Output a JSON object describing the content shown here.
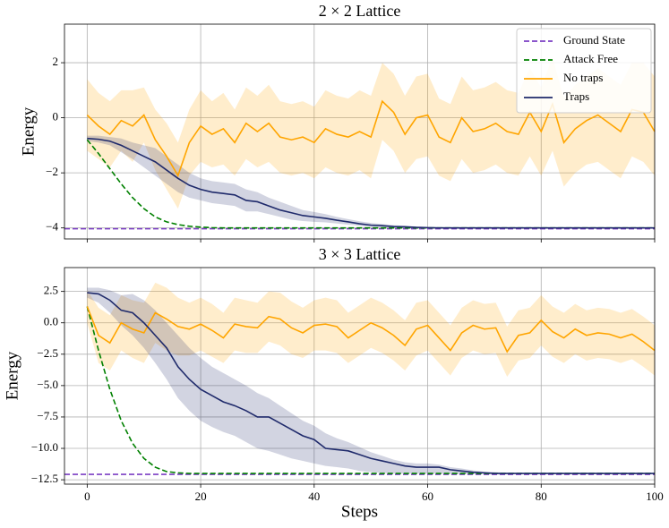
{
  "chart_data": [
    {
      "type": "line",
      "title": "2 × 2 Lattice",
      "ylabel": "Energy",
      "xlim": [
        -4,
        100
      ],
      "ylim": [
        -4.4,
        3.4
      ],
      "xticks": [
        0,
        20,
        40,
        60,
        80,
        100
      ],
      "show_xtick_labels": false,
      "yticks": [
        {
          "value": -4,
          "label": "−4"
        },
        {
          "value": -2,
          "label": "−2"
        },
        0,
        2
      ],
      "grid": true,
      "legend": "upper right",
      "x": [
        0,
        2,
        4,
        6,
        8,
        10,
        12,
        14,
        16,
        18,
        20,
        22,
        24,
        26,
        28,
        30,
        32,
        34,
        36,
        38,
        40,
        42,
        44,
        46,
        48,
        50,
        52,
        54,
        56,
        58,
        60,
        62,
        64,
        66,
        68,
        70,
        72,
        74,
        76,
        78,
        80,
        82,
        84,
        86,
        88,
        90,
        92,
        94,
        96,
        98,
        100
      ],
      "series": [
        {
          "name": "Ground State",
          "color": "#7b3fc4",
          "dashed": true,
          "hline": -4.03
        },
        {
          "name": "Attack Free",
          "color": "#008000",
          "dashed": true,
          "values": [
            -0.8,
            -1.3,
            -1.85,
            -2.4,
            -2.9,
            -3.3,
            -3.6,
            -3.78,
            -3.88,
            -3.94,
            -3.97,
            -3.99,
            -4.0,
            -4.0,
            -4.0,
            -4.0,
            -4.0,
            -4.0,
            -4.0,
            -4.0,
            -4.0,
            -4.0,
            -4.0,
            -4.0,
            -4.0,
            -4.0,
            -4.0,
            -4.0,
            -4.0,
            -4.0,
            -4.0,
            -4.0,
            -4.0,
            -4.0,
            -4.0,
            -4.0,
            -4.0,
            -4.0,
            -4.0,
            -4.0,
            -4.0,
            -4.0,
            -4.0,
            -4.0,
            -4.0,
            -4.0,
            -4.0,
            -4.0,
            -4.0,
            -4.0,
            -4.0
          ]
        },
        {
          "name": "No traps",
          "color": "#ffa500",
          "values": [
            0.1,
            -0.3,
            -0.6,
            -0.1,
            -0.3,
            0.1,
            -0.8,
            -1.4,
            -2.1,
            -0.9,
            -0.3,
            -0.6,
            -0.4,
            -0.9,
            -0.2,
            -0.5,
            -0.2,
            -0.7,
            -0.8,
            -0.7,
            -0.9,
            -0.4,
            -0.6,
            -0.7,
            -0.5,
            -0.7,
            0.6,
            0.2,
            -0.6,
            0.0,
            0.1,
            -0.7,
            -0.9,
            0.0,
            -0.5,
            -0.4,
            -0.2,
            -0.5,
            -0.6,
            0.2,
            -0.5,
            0.5,
            -0.9,
            -0.4,
            -0.1,
            0.1,
            -0.2,
            -0.5,
            0.3,
            0.2,
            -0.5
          ],
          "upper": [
            1.4,
            0.9,
            0.6,
            1.0,
            1.0,
            1.1,
            0.3,
            -0.2,
            -0.9,
            0.3,
            1.0,
            0.6,
            0.9,
            0.3,
            1.1,
            0.8,
            1.2,
            0.6,
            0.5,
            0.6,
            0.4,
            1.0,
            0.8,
            0.7,
            1.0,
            0.8,
            2.0,
            1.6,
            0.8,
            1.5,
            1.6,
            0.7,
            0.5,
            1.5,
            1.0,
            1.1,
            1.3,
            1.0,
            0.9,
            1.8,
            1.1,
            2.2,
            0.7,
            1.2,
            1.5,
            1.8,
            1.5,
            1.2,
            2.0,
            2.0,
            1.5
          ],
          "lower": [
            -1.2,
            -1.5,
            -1.8,
            -1.2,
            -1.6,
            -0.9,
            -1.9,
            -2.6,
            -3.3,
            -2.1,
            -1.6,
            -1.8,
            -1.7,
            -2.1,
            -1.5,
            -1.8,
            -1.6,
            -2.0,
            -2.1,
            -2.0,
            -2.2,
            -1.8,
            -2.0,
            -2.1,
            -1.9,
            -2.2,
            -0.8,
            -1.2,
            -2.0,
            -1.5,
            -1.4,
            -2.1,
            -2.3,
            -1.5,
            -2.0,
            -1.9,
            -1.7,
            -2.0,
            -2.1,
            -1.4,
            -2.1,
            -1.2,
            -2.5,
            -2.0,
            -1.7,
            -1.6,
            -1.9,
            -2.2,
            -1.4,
            -1.6,
            -2.1
          ]
        },
        {
          "name": "Traps",
          "color": "#1f2a6b",
          "values": [
            -0.75,
            -0.78,
            -0.85,
            -1.0,
            -1.2,
            -1.4,
            -1.6,
            -1.9,
            -2.2,
            -2.45,
            -2.6,
            -2.7,
            -2.75,
            -2.8,
            -3.0,
            -3.05,
            -3.2,
            -3.35,
            -3.45,
            -3.55,
            -3.6,
            -3.65,
            -3.72,
            -3.78,
            -3.85,
            -3.9,
            -3.92,
            -3.95,
            -3.96,
            -3.98,
            -3.99,
            -4.0,
            -4.0,
            -4.0,
            -4.0,
            -4.0,
            -4.0,
            -4.0,
            -4.0,
            -4.0,
            -4.0,
            -4.0,
            -4.0,
            -4.0,
            -4.0,
            -4.0,
            -4.0,
            -4.0,
            -4.0,
            -4.0,
            -4.0
          ],
          "upper": [
            -0.65,
            -0.65,
            -0.7,
            -0.75,
            -0.9,
            -1.0,
            -1.1,
            -1.4,
            -1.7,
            -2.0,
            -2.2,
            -2.3,
            -2.35,
            -2.4,
            -2.6,
            -2.7,
            -2.9,
            -3.05,
            -3.2,
            -3.35,
            -3.42,
            -3.5,
            -3.6,
            -3.68,
            -3.76,
            -3.82,
            -3.86,
            -3.9,
            -3.92,
            -3.95,
            -3.96,
            -3.97,
            -3.97,
            -3.97,
            -3.97,
            -3.97,
            -3.97,
            -3.97,
            -3.97,
            -3.97,
            -3.97,
            -3.97,
            -3.97,
            -3.97,
            -3.97,
            -3.97,
            -3.97,
            -3.97,
            -3.97,
            -3.97,
            -3.97
          ],
          "lower": [
            -0.85,
            -0.9,
            -1.0,
            -1.25,
            -1.5,
            -1.8,
            -2.1,
            -2.4,
            -2.7,
            -2.9,
            -3.0,
            -3.1,
            -3.15,
            -3.2,
            -3.4,
            -3.4,
            -3.5,
            -3.6,
            -3.7,
            -3.75,
            -3.78,
            -3.8,
            -3.84,
            -3.88,
            -3.92,
            -3.96,
            -3.97,
            -3.99,
            -4.0,
            -4.01,
            -4.02,
            -4.03,
            -4.03,
            -4.03,
            -4.03,
            -4.03,
            -4.03,
            -4.03,
            -4.03,
            -4.03,
            -4.03,
            -4.03,
            -4.03,
            -4.03,
            -4.03,
            -4.03,
            -4.03,
            -4.03,
            -4.03,
            -4.03,
            -4.03
          ]
        }
      ]
    },
    {
      "type": "line",
      "title": "3 × 3 Lattice",
      "xlabel": "Steps",
      "ylabel": "Energy",
      "xlim": [
        -4,
        100
      ],
      "ylim": [
        -12.85,
        4.4
      ],
      "xticks": [
        0,
        20,
        40,
        60,
        80,
        100
      ],
      "show_xtick_labels": true,
      "yticks": [
        {
          "value": -12.5,
          "label": "−12.5"
        },
        {
          "value": -10,
          "label": "−10.0"
        },
        {
          "value": -7.5,
          "label": "−7.5"
        },
        {
          "value": -5,
          "label": "−5.0"
        },
        {
          "value": -2.5,
          "label": "−2.5"
        },
        {
          "value": 0,
          "label": "0.0"
        },
        2.5
      ],
      "grid": true,
      "x": [
        0,
        2,
        4,
        6,
        8,
        10,
        12,
        14,
        16,
        18,
        20,
        22,
        24,
        26,
        28,
        30,
        32,
        34,
        36,
        38,
        40,
        42,
        44,
        46,
        48,
        50,
        52,
        54,
        56,
        58,
        60,
        62,
        64,
        66,
        68,
        70,
        72,
        74,
        76,
        78,
        80,
        82,
        84,
        86,
        88,
        90,
        92,
        94,
        96,
        98,
        100
      ],
      "series": [
        {
          "color": "#7b3fc4",
          "dashed": true,
          "hline": -12.07
        },
        {
          "color": "#008000",
          "dashed": true,
          "values": [
            1.3,
            -2.2,
            -5.3,
            -7.8,
            -9.6,
            -10.8,
            -11.5,
            -11.85,
            -11.95,
            -12.0,
            -12.0,
            -12.0,
            -12.0,
            -12.0,
            -12.0,
            -12.0,
            -12.0,
            -12.0,
            -12.0,
            -12.0,
            -12.0,
            -12.0,
            -12.0,
            -12.0,
            -12.0,
            -12.0,
            -12.0,
            -12.0,
            -12.0,
            -12.0,
            -12.0,
            -12.0,
            -12.0,
            -12.0,
            -12.0,
            -12.0,
            -12.0,
            -12.0,
            -12.0,
            -12.0,
            -12.0,
            -12.0,
            -12.0,
            -12.0,
            -12.0,
            -12.0,
            -12.0,
            -12.0,
            -12.0,
            -12.0,
            -12.0
          ]
        },
        {
          "color": "#ffa500",
          "values": [
            1.3,
            -1.0,
            -1.6,
            0.0,
            -0.5,
            -0.8,
            0.8,
            0.3,
            -0.3,
            -0.5,
            -0.1,
            -0.6,
            -1.2,
            -0.1,
            -0.3,
            -0.4,
            0.5,
            0.3,
            -0.4,
            -0.8,
            -0.2,
            -0.1,
            -0.3,
            -1.2,
            -0.6,
            0.0,
            -0.4,
            -1.0,
            -1.8,
            -0.5,
            -0.2,
            -1.2,
            -2.2,
            -0.8,
            -0.2,
            -0.5,
            -0.4,
            -2.3,
            -1.0,
            -0.8,
            0.2,
            -0.7,
            -1.2,
            -0.5,
            -1.0,
            -0.8,
            -0.9,
            -1.2,
            -0.9,
            -1.5,
            -2.2
          ],
          "upper": [
            2.6,
            1.2,
            0.6,
            2.2,
            1.8,
            1.6,
            3.2,
            2.8,
            2.0,
            1.6,
            2.0,
            1.5,
            0.8,
            2.0,
            1.8,
            1.6,
            2.5,
            2.4,
            1.7,
            1.2,
            1.8,
            2.0,
            1.8,
            0.8,
            1.4,
            2.0,
            1.6,
            1.0,
            0.2,
            1.6,
            1.8,
            0.8,
            -0.2,
            1.2,
            1.8,
            1.5,
            1.6,
            -0.3,
            1.0,
            1.2,
            2.2,
            1.3,
            0.8,
            1.5,
            1.0,
            1.2,
            1.1,
            0.8,
            1.1,
            0.5,
            -0.2
          ],
          "lower": [
            0.0,
            -3.2,
            -3.8,
            -2.2,
            -2.8,
            -3.2,
            -1.6,
            -2.2,
            -2.6,
            -2.6,
            -2.2,
            -2.7,
            -3.2,
            -2.2,
            -2.4,
            -2.4,
            -1.5,
            -1.8,
            -2.5,
            -2.8,
            -2.2,
            -2.2,
            -2.4,
            -3.2,
            -2.6,
            -2.0,
            -2.4,
            -3.0,
            -3.8,
            -2.6,
            -2.2,
            -3.2,
            -4.2,
            -2.8,
            -2.2,
            -2.5,
            -2.4,
            -4.3,
            -3.0,
            -2.8,
            -1.8,
            -2.7,
            -3.2,
            -2.5,
            -3.0,
            -2.8,
            -2.9,
            -3.2,
            -2.9,
            -3.5,
            -4.2
          ]
        },
        {
          "color": "#1f2a6b",
          "values": [
            2.4,
            2.3,
            1.8,
            1.0,
            0.8,
            0.0,
            -1.0,
            -2.0,
            -3.5,
            -4.5,
            -5.3,
            -5.8,
            -6.3,
            -6.6,
            -7.0,
            -7.5,
            -7.5,
            -8.0,
            -8.5,
            -9.0,
            -9.3,
            -10.0,
            -10.1,
            -10.2,
            -10.5,
            -10.8,
            -11.0,
            -11.2,
            -11.4,
            -11.5,
            -11.5,
            -11.5,
            -11.7,
            -11.8,
            -11.9,
            -11.95,
            -12.0,
            -12.0,
            -12.0,
            -12.0,
            -12.0,
            -12.0,
            -12.0,
            -12.0,
            -12.0,
            -12.0,
            -12.0,
            -12.0,
            -12.0,
            -12.0,
            -12.0
          ],
          "upper": [
            2.8,
            2.8,
            2.6,
            2.2,
            2.3,
            1.8,
            1.0,
            0.0,
            -1.0,
            -2.0,
            -2.8,
            -3.5,
            -4.0,
            -4.5,
            -5.0,
            -5.6,
            -6.0,
            -6.6,
            -7.2,
            -7.8,
            -8.2,
            -8.8,
            -9.2,
            -9.5,
            -9.9,
            -10.3,
            -10.6,
            -10.9,
            -11.1,
            -11.2,
            -11.2,
            -11.3,
            -11.5,
            -11.6,
            -11.75,
            -11.85,
            -11.9,
            -11.95,
            -11.95,
            -11.95,
            -11.95,
            -11.95,
            -11.95,
            -11.95,
            -11.95,
            -11.95,
            -11.95,
            -11.95,
            -11.95,
            -11.95,
            -11.95
          ],
          "lower": [
            2.0,
            1.6,
            0.8,
            -0.2,
            -1.0,
            -2.0,
            -3.2,
            -4.5,
            -6.0,
            -7.0,
            -7.8,
            -8.3,
            -8.7,
            -9.0,
            -9.5,
            -10.0,
            -10.2,
            -10.5,
            -10.8,
            -11.0,
            -11.2,
            -11.4,
            -11.5,
            -11.6,
            -11.8,
            -11.9,
            -11.95,
            -12.0,
            -12.0,
            -12.0,
            -12.0,
            -12.0,
            -12.05,
            -12.05,
            -12.05,
            -12.05,
            -12.05,
            -12.05,
            -12.05,
            -12.05,
            -12.05,
            -12.05,
            -12.05,
            -12.05,
            -12.05,
            -12.05,
            -12.05,
            -12.05,
            -12.05,
            -12.05,
            -12.05
          ]
        }
      ]
    }
  ]
}
